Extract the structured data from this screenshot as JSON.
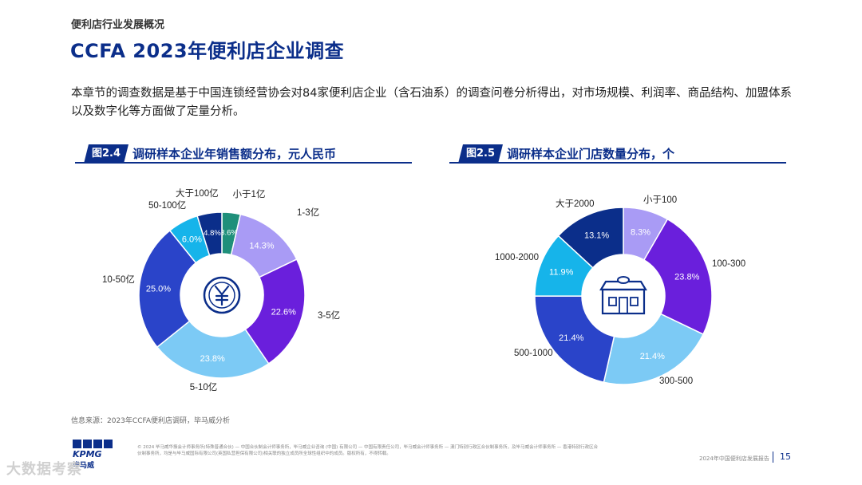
{
  "header": {
    "section": "便利店行业发展概况",
    "title": "CCFA 2023年便利店企业调查"
  },
  "intro": "本章节的调查数据是基于中国连锁经营协会对84家便利店企业（含石油系）的调查问卷分析得出，对市场规模、利润率、商品结构、加盟体系以及数字化等方面做了定量分析。",
  "figures": [
    {
      "tag": "图2.4",
      "title": "调研样本企业年销售额分布，元人民币"
    },
    {
      "tag": "图2.5",
      "title": "调研样本企业门店数量分布，个"
    }
  ],
  "chart_data": [
    {
      "type": "pie",
      "center_icon": "yuan-coin-icon",
      "categories": [
        "小于1亿",
        "1-3亿",
        "3-5亿",
        "5-10亿",
        "10-50亿",
        "50-100亿",
        "大于100亿"
      ],
      "values": [
        3.6,
        14.3,
        22.6,
        23.8,
        25.0,
        6.0,
        4.8
      ],
      "value_labels": [
        "3.6%",
        "14.3%",
        "22.6%",
        "23.8%",
        "25.0%",
        "6.0%",
        "4.8%"
      ],
      "colors": [
        "#1f8f7a",
        "#a99bf5",
        "#6a1fdc",
        "#7ccaf5",
        "#2a44c9",
        "#16b4ea",
        "#0b2e8a"
      ]
    },
    {
      "type": "pie",
      "center_icon": "store-icon",
      "categories": [
        "小于100",
        "100-300",
        "300-500",
        "500-1000",
        "1000-2000",
        "大于2000"
      ],
      "values": [
        8.3,
        23.8,
        21.4,
        21.4,
        11.9,
        13.1
      ],
      "value_labels": [
        "8.3%",
        "23.8%",
        "21.4%",
        "21.4%",
        "11.9%",
        "13.1%"
      ],
      "colors": [
        "#a99bf5",
        "#6a1fdc",
        "#7ccaf5",
        "#2a44c9",
        "#16b4ea",
        "#0b2e8a"
      ]
    }
  ],
  "source": "信息来源：2023年CCFA便利店调研，毕马威分析",
  "footer": {
    "logo": "KPMG",
    "logo_cn": "毕马威",
    "disclaimer": "© 2024 毕马威华振会计师事务所(特殊普通合伙) — 中国合伙制会计师事务所，毕马威企业咨询 (中国) 有限公司 — 中国有限责任公司，毕马威会计师事务所 — 澳门特别行政区合伙制事务所，及毕马威会计师事务所 — 香港特别行政区合伙制事务所，均是与毕马威国际有限公司(英国私营担保有限公司)相关联的独立成员所全球性组织中的成员。版权所有，不得转载。",
    "report_name": "2024年中国便利店发展报告",
    "page": "15",
    "watermark": "大数据考察"
  }
}
